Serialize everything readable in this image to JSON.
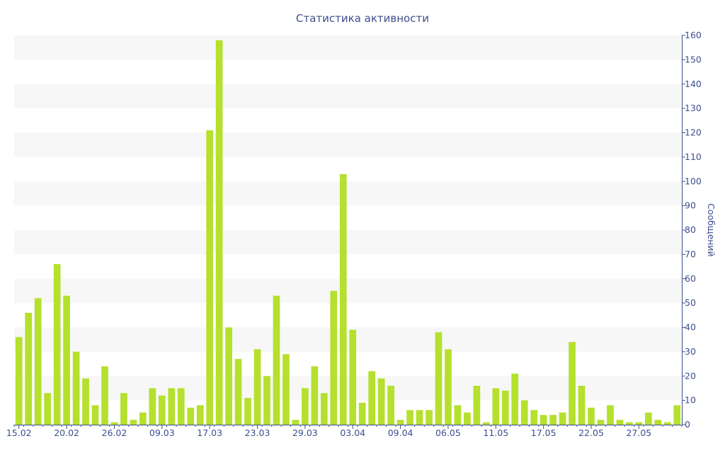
{
  "chart_data": {
    "type": "bar",
    "title": "Статистика активности",
    "xlabel": "",
    "ylabel": "Сообщений",
    "ylim": [
      0,
      160
    ],
    "yticks": [
      0,
      10,
      20,
      30,
      40,
      50,
      60,
      70,
      80,
      90,
      100,
      110,
      120,
      130,
      140,
      150,
      160
    ],
    "y_axis_side": "right",
    "grid": "alternating horizontal bands",
    "x_tick_labels": [
      {
        "index": 0,
        "label": "15.02"
      },
      {
        "index": 5,
        "label": "20.02"
      },
      {
        "index": 10,
        "label": "26.02"
      },
      {
        "index": 15,
        "label": "09.03"
      },
      {
        "index": 20,
        "label": "17.03"
      },
      {
        "index": 25,
        "label": "23.03"
      },
      {
        "index": 30,
        "label": "29.03"
      },
      {
        "index": 35,
        "label": "03.04"
      },
      {
        "index": 40,
        "label": "09.04"
      },
      {
        "index": 45,
        "label": "06.05"
      },
      {
        "index": 50,
        "label": "11.05"
      },
      {
        "index": 55,
        "label": "17.05"
      },
      {
        "index": 60,
        "label": "22.05"
      },
      {
        "index": 65,
        "label": "27.05"
      }
    ],
    "values": [
      36,
      46,
      52,
      13,
      66,
      53,
      30,
      19,
      8,
      24,
      1,
      13,
      2,
      5,
      15,
      12,
      15,
      15,
      7,
      8,
      121,
      158,
      40,
      27,
      11,
      31,
      20,
      53,
      29,
      2,
      15,
      24,
      13,
      55,
      103,
      39,
      9,
      22,
      19,
      16,
      2,
      6,
      6,
      6,
      38,
      31,
      8,
      5,
      16,
      1,
      15,
      14,
      21,
      10,
      6,
      4,
      4,
      5,
      34,
      16,
      7,
      2,
      8,
      2,
      1,
      1,
      5,
      2,
      1,
      8
    ],
    "colors": {
      "bar": "#b5e02d",
      "band": "#f7f7f7",
      "text": "#3d4e8f",
      "axis": "#3d4e8f"
    }
  }
}
